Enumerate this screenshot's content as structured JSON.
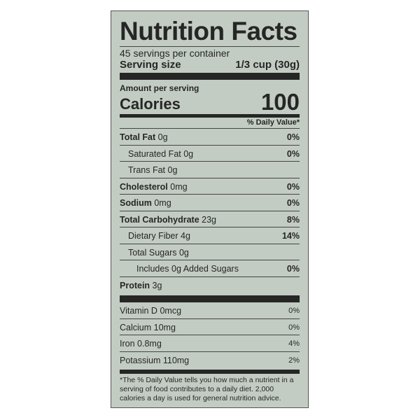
{
  "title": "Nutrition Facts",
  "servings_per_container": "45 servings per container",
  "serving_size": {
    "label": "Serving size",
    "value": "1/3 cup (30g)"
  },
  "amount_per_serving": "Amount per serving",
  "calories": {
    "label": "Calories",
    "value": "100"
  },
  "daily_value_header": "% Daily Value*",
  "nutrients": [
    {
      "name": "Total Fat",
      "amount": "0g",
      "dv": "0%"
    },
    {
      "name": "Saturated Fat",
      "amount": "0g",
      "dv": "0%"
    },
    {
      "name": "Trans Fat",
      "amount": "0g",
      "dv": ""
    },
    {
      "name": "Cholesterol",
      "amount": "0mg",
      "dv": "0%"
    },
    {
      "name": "Sodium",
      "amount": "0mg",
      "dv": "0%"
    },
    {
      "name": "Total Carbohydrate",
      "amount": "23g",
      "dv": "8%"
    },
    {
      "name": "Dietary Fiber",
      "amount": "4g",
      "dv": "14%"
    },
    {
      "name": "Total Sugars",
      "amount": "0g",
      "dv": ""
    },
    {
      "name": "Includes 0g Added Sugars",
      "amount": "",
      "dv": "0%"
    },
    {
      "name": "Protein",
      "amount": "3g",
      "dv": ""
    }
  ],
  "vitamins": [
    {
      "name": "Vitamin D",
      "amount": "0mcg",
      "dv": "0%"
    },
    {
      "name": "Calcium",
      "amount": "10mg",
      "dv": "0%"
    },
    {
      "name": "Iron",
      "amount": "0.8mg",
      "dv": "4%"
    },
    {
      "name": "Potassium",
      "amount": "110mg",
      "dv": "2%"
    }
  ],
  "footnote": "*The % Daily Value tells you how much a nutrient in a serving of food contributes to a daily diet. 2,000 calories a day is used for general nutrition advice.",
  "colors": {
    "background": "#c3ccc2",
    "text": "#262626"
  }
}
